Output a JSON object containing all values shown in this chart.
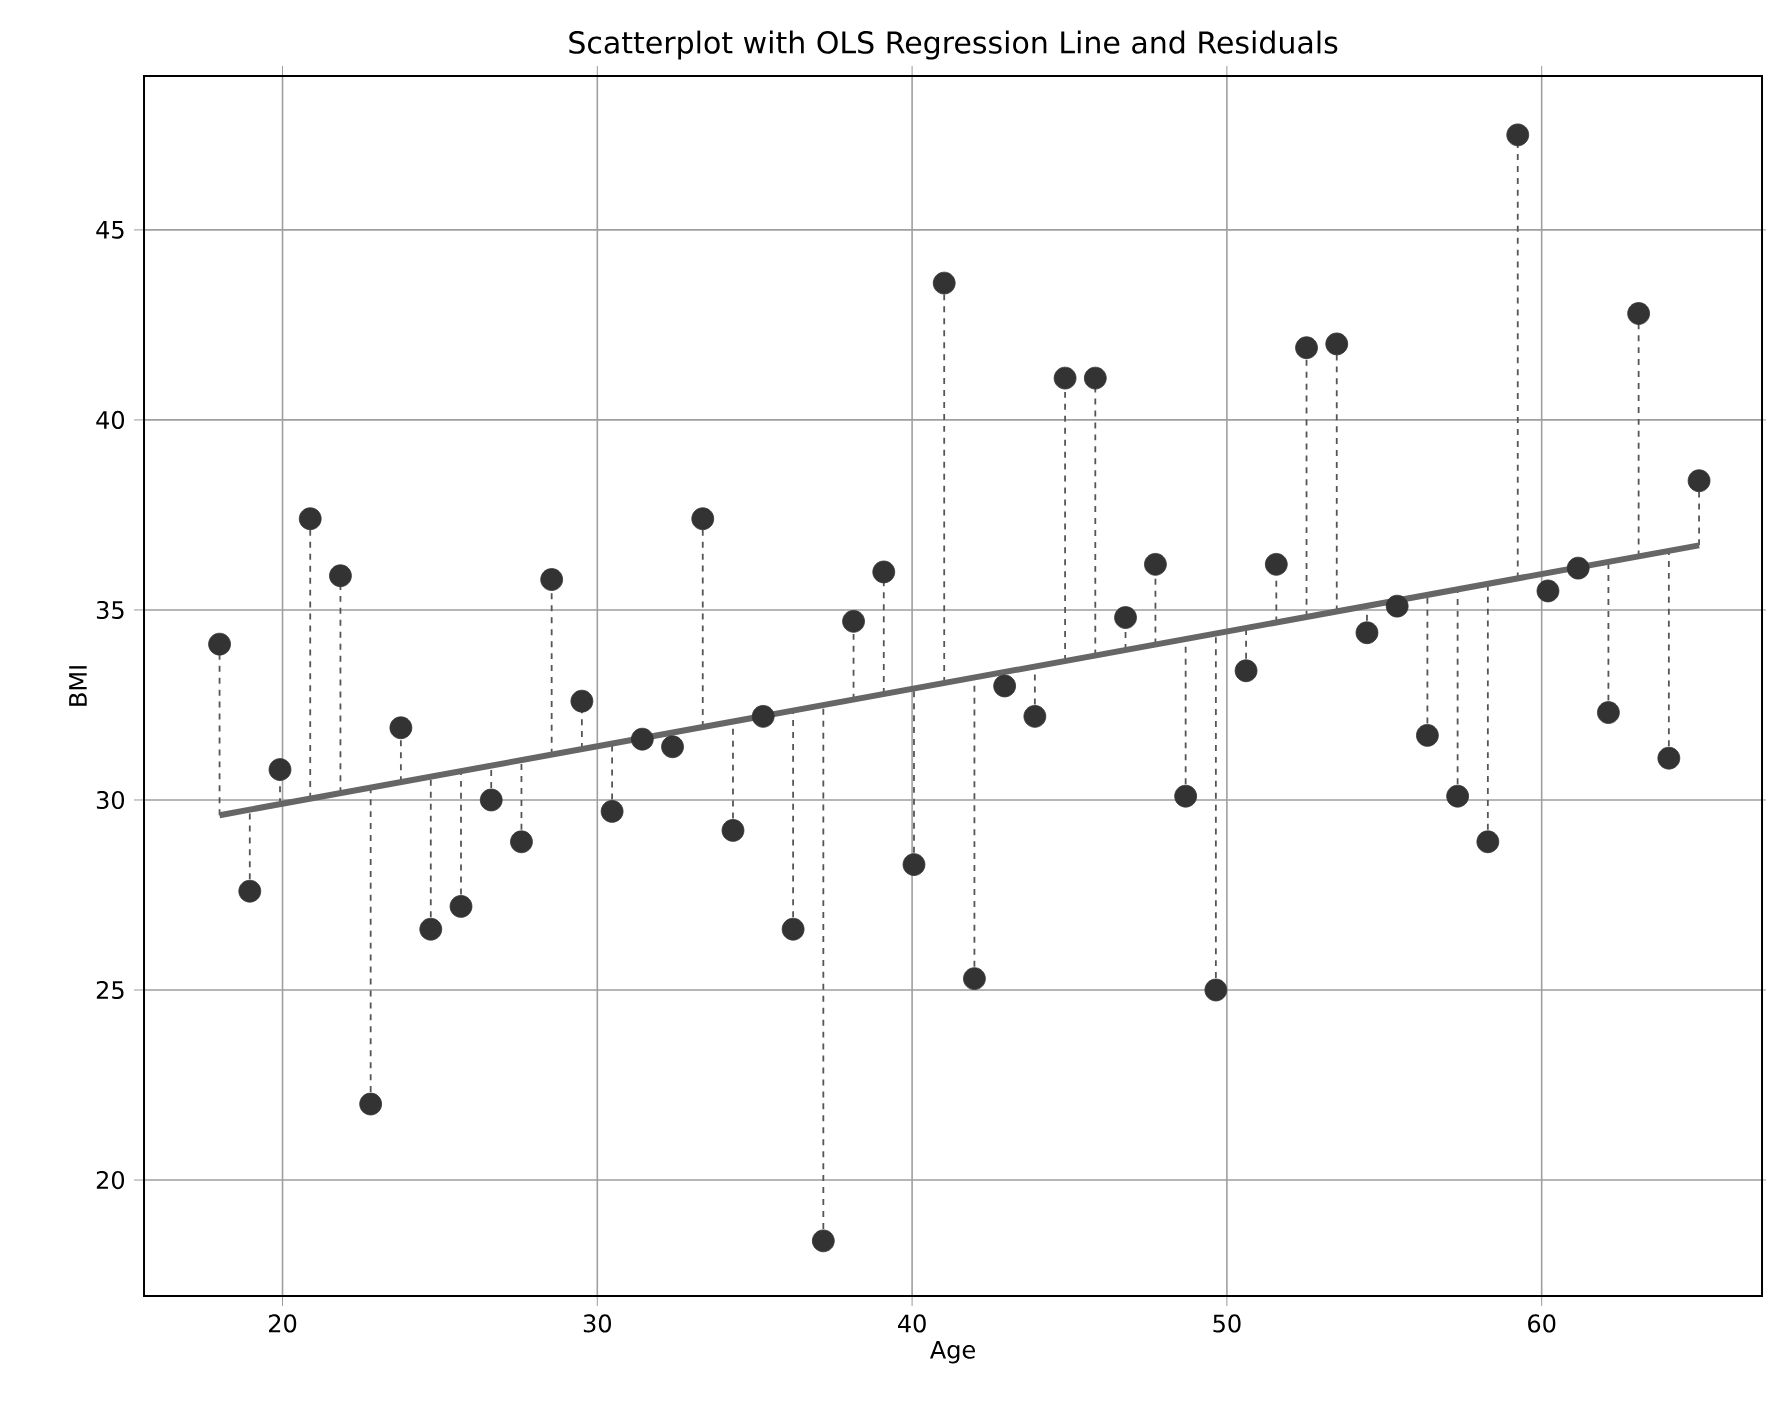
{
  "chart_data": {
    "type": "scatter",
    "title": "Scatterplot with OLS Regression Line and Residuals",
    "xlabel": "Age",
    "ylabel": "BMI",
    "xlim": [
      15.6,
      67.0
    ],
    "ylim": [
      16.95,
      49.05
    ],
    "xticks": [
      20,
      30,
      40,
      50,
      60
    ],
    "yticks": [
      20,
      25,
      30,
      35,
      40,
      45
    ],
    "grid": true,
    "series": [
      {
        "color": "#333333",
        "marker": "circle",
        "x": [
          18.0,
          18.96,
          19.92,
          20.88,
          21.84,
          22.8,
          23.76,
          24.71,
          25.67,
          26.63,
          27.59,
          28.55,
          29.51,
          30.47,
          31.43,
          32.39,
          33.35,
          34.31,
          35.27,
          36.22,
          37.18,
          38.14,
          39.1,
          40.06,
          41.02,
          41.98,
          42.94,
          43.9,
          44.86,
          45.82,
          46.78,
          47.73,
          48.69,
          49.65,
          50.61,
          51.57,
          52.53,
          53.49,
          54.45,
          55.41,
          56.37,
          57.33,
          58.29,
          59.24,
          60.2,
          61.16,
          62.12,
          63.08,
          64.04,
          65.0
        ],
        "values": [
          34.1,
          27.6,
          30.8,
          37.4,
          35.9,
          22.0,
          31.9,
          26.6,
          27.2,
          30.0,
          28.9,
          35.8,
          32.6,
          29.7,
          31.6,
          31.4,
          37.4,
          29.2,
          32.2,
          26.6,
          18.4,
          34.7,
          36.0,
          28.3,
          43.6,
          25.3,
          33.0,
          32.2,
          41.1,
          41.1,
          34.8,
          36.2,
          30.1,
          25.0,
          33.4,
          36.2,
          41.9,
          42.0,
          34.4,
          35.1,
          31.7,
          30.1,
          28.9,
          47.5,
          35.5,
          36.1,
          32.3,
          42.8,
          31.1,
          38.4
        ],
        "errors": [
          [
            29.6,
            34.1
          ],
          [
            27.6,
            29.74
          ],
          [
            29.89,
            30.8
          ],
          [
            30.03,
            37.4
          ],
          [
            30.18,
            35.9
          ],
          [
            22.0,
            30.32
          ],
          [
            30.47,
            31.9
          ],
          [
            26.6,
            30.61
          ],
          [
            27.2,
            30.76
          ],
          [
            30.0,
            30.9
          ],
          [
            28.9,
            31.05
          ],
          [
            31.19,
            35.8
          ],
          [
            31.34,
            32.6
          ],
          [
            29.7,
            31.48
          ],
          null,
          null,
          [
            31.92,
            37.4
          ],
          [
            29.2,
            32.06
          ],
          null,
          [
            26.6,
            32.35
          ],
          [
            18.4,
            32.5
          ],
          [
            32.64,
            34.7
          ],
          [
            32.79,
            36.0
          ],
          [
            28.3,
            32.93
          ],
          [
            33.08,
            43.6
          ],
          [
            25.3,
            33.22
          ],
          null,
          [
            32.2,
            33.51
          ],
          [
            33.66,
            41.1
          ],
          [
            33.8,
            41.1
          ],
          [
            33.95,
            34.8
          ],
          [
            34.09,
            36.2
          ],
          [
            30.1,
            34.24
          ],
          [
            25.0,
            34.38
          ],
          [
            33.4,
            34.53
          ],
          [
            34.67,
            36.2
          ],
          [
            34.82,
            41.9
          ],
          [
            34.96,
            42.0
          ],
          [
            34.4,
            35.11
          ],
          null,
          [
            31.7,
            35.4
          ],
          [
            30.1,
            35.54
          ],
          [
            28.9,
            35.69
          ],
          [
            35.83,
            47.5
          ],
          null,
          null,
          [
            32.3,
            36.27
          ],
          [
            36.41,
            42.8
          ],
          [
            31.1,
            36.56
          ],
          [
            36.7,
            38.4
          ]
        ]
      },
      {
        "type": "line",
        "color": "#666666",
        "marker": "none",
        "x": [
          18,
          65
        ],
        "values": [
          29.6,
          36.7
        ]
      }
    ]
  }
}
